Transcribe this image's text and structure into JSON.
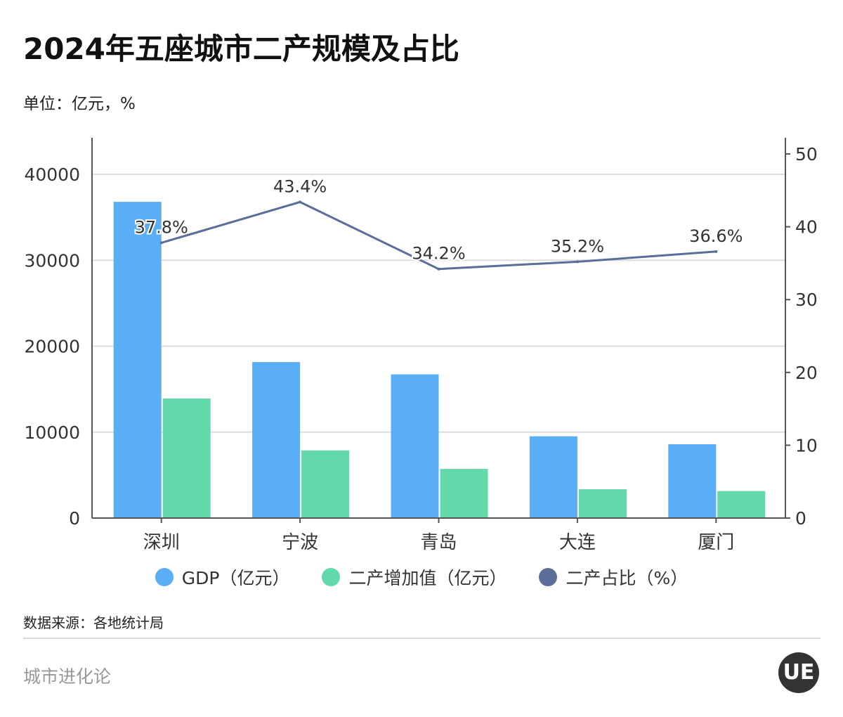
{
  "title": "2024年五座城市二产规模及占比",
  "unit": "单位：亿元，%",
  "source": "数据来源：各地统计局",
  "brand": "城市进化论",
  "logo": "UE",
  "colors": {
    "gdp": "#5aaef5",
    "secondary": "#62d9aa",
    "share": "#5a6e99"
  },
  "chart_data": {
    "type": "bar+line",
    "categories": [
      "深圳",
      "宁波",
      "青岛",
      "大连",
      "厦门"
    ],
    "series": [
      {
        "name": "GDP（亿元）",
        "type": "bar",
        "axis": "left",
        "values": [
          36802,
          18148,
          16719,
          9517,
          8589
        ]
      },
      {
        "name": "二产增加值（亿元）",
        "type": "bar",
        "axis": "left",
        "values": [
          13911,
          7876,
          5718,
          3350,
          3144
        ]
      },
      {
        "name": "二产占比（%）",
        "type": "line",
        "axis": "right",
        "values": [
          37.8,
          43.4,
          34.2,
          35.2,
          36.6
        ],
        "labels": [
          "37.8%",
          "43.4%",
          "34.2%",
          "35.2%",
          "36.6%"
        ]
      }
    ],
    "left_axis": {
      "ylim": [
        0,
        44000
      ],
      "ticks": [
        0,
        10000,
        20000,
        30000,
        40000
      ]
    },
    "right_axis": {
      "ylim": [
        0,
        52
      ],
      "ticks": [
        0,
        10,
        20,
        30,
        40,
        50
      ]
    },
    "grid": true,
    "legend": "bottom"
  }
}
